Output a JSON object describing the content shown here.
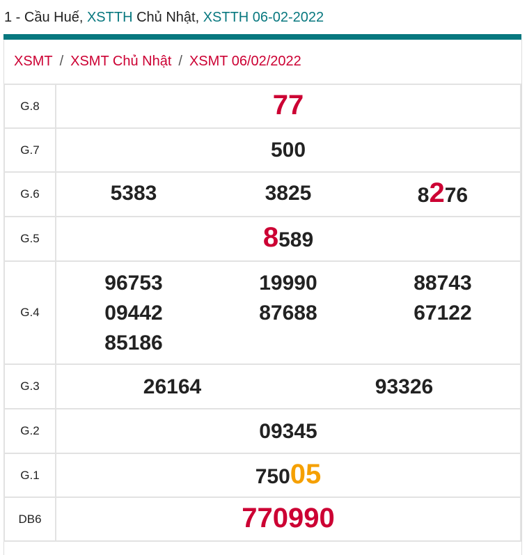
{
  "header": {
    "prefix": "1 - Cầu Huế, ",
    "link1": "XSTTH",
    "middle": " Chủ Nhật, ",
    "link2": "XSTTH 06-02-2022"
  },
  "breadcrumb": [
    "XSMT",
    "XSMT Chủ Nhật",
    "XSMT 06/02/2022"
  ],
  "breadcrumb_sep": "/",
  "colors": {
    "accent": "#08787f",
    "red": "#cc0033",
    "orange": "#f5a000"
  },
  "prizes": [
    {
      "label": "G.8",
      "cols": 1,
      "h": 63,
      "numbers": [
        [
          {
            "t": "77",
            "s": "red big"
          }
        ]
      ]
    },
    {
      "label": "G.7",
      "cols": 1,
      "h": 63,
      "numbers": [
        [
          {
            "t": "500",
            "s": ""
          }
        ]
      ]
    },
    {
      "label": "G.6",
      "cols": 3,
      "h": 64,
      "numbers": [
        [
          {
            "t": "5383",
            "s": ""
          }
        ],
        [
          {
            "t": "3825",
            "s": ""
          }
        ],
        [
          {
            "t": "8",
            "s": ""
          },
          {
            "t": "2",
            "s": "red big"
          },
          {
            "t": "76",
            "s": ""
          }
        ]
      ]
    },
    {
      "label": "G.5",
      "cols": 1,
      "h": 64,
      "numbers": [
        [
          {
            "t": "8",
            "s": "red big"
          },
          {
            "t": "589",
            "s": ""
          }
        ]
      ]
    },
    {
      "label": "G.4",
      "cols": 3,
      "h": 148,
      "numbers": [
        [
          {
            "t": "96753",
            "s": ""
          }
        ],
        [
          {
            "t": "19990",
            "s": ""
          }
        ],
        [
          {
            "t": "88743",
            "s": ""
          }
        ],
        [
          {
            "t": "09442",
            "s": ""
          }
        ],
        [
          {
            "t": "87688",
            "s": ""
          }
        ],
        [
          {
            "t": "67122",
            "s": ""
          }
        ],
        [
          {
            "t": "85186",
            "s": ""
          }
        ]
      ]
    },
    {
      "label": "G.3",
      "cols": 2,
      "h": 64,
      "numbers": [
        [
          {
            "t": "26164",
            "s": ""
          }
        ],
        [
          {
            "t": "93326",
            "s": ""
          }
        ]
      ]
    },
    {
      "label": "G.2",
      "cols": 1,
      "h": 64,
      "numbers": [
        [
          {
            "t": "09345",
            "s": ""
          }
        ]
      ]
    },
    {
      "label": "G.1",
      "cols": 1,
      "h": 63,
      "numbers": [
        [
          {
            "t": "750",
            "s": ""
          },
          {
            "t": "05",
            "s": "orange big"
          }
        ]
      ]
    },
    {
      "label": "DB6",
      "cols": 1,
      "h": 63,
      "numbers": [
        [
          {
            "t": "770990",
            "s": "red big"
          }
        ]
      ]
    }
  ]
}
